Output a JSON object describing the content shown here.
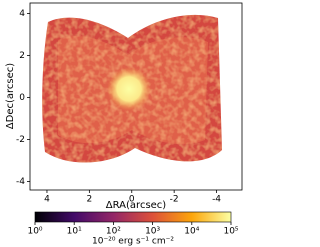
{
  "chart_data": {
    "type": "image",
    "xlabel": "ΔRA(arcsec)",
    "ylabel": "ΔDec(arcsec)",
    "xlim": [
      4.8,
      -5.2
    ],
    "xticks": [
      4,
      2,
      0,
      -2,
      -4
    ],
    "ylim": [
      -4.4,
      4.5
    ],
    "yticks": [
      -4,
      -2,
      0,
      2,
      4
    ],
    "colorbar": {
      "label": "10⁻²⁰ erg s⁻¹ cm⁻²",
      "log": true,
      "lim": [
        1,
        100000
      ],
      "ticks": [
        {
          "value": 1,
          "label": "10⁰"
        },
        {
          "value": 10,
          "label": "10¹"
        },
        {
          "value": 100,
          "label": "10²"
        },
        {
          "value": 1000,
          "label": "10³"
        },
        {
          "value": 10000,
          "label": "10⁴"
        },
        {
          "value": 100000,
          "label": "10⁵"
        }
      ],
      "colormap": [
        "#000004",
        "#420a68",
        "#932667",
        "#dd513a",
        "#fca50a",
        "#fcffa4"
      ]
    }
  }
}
